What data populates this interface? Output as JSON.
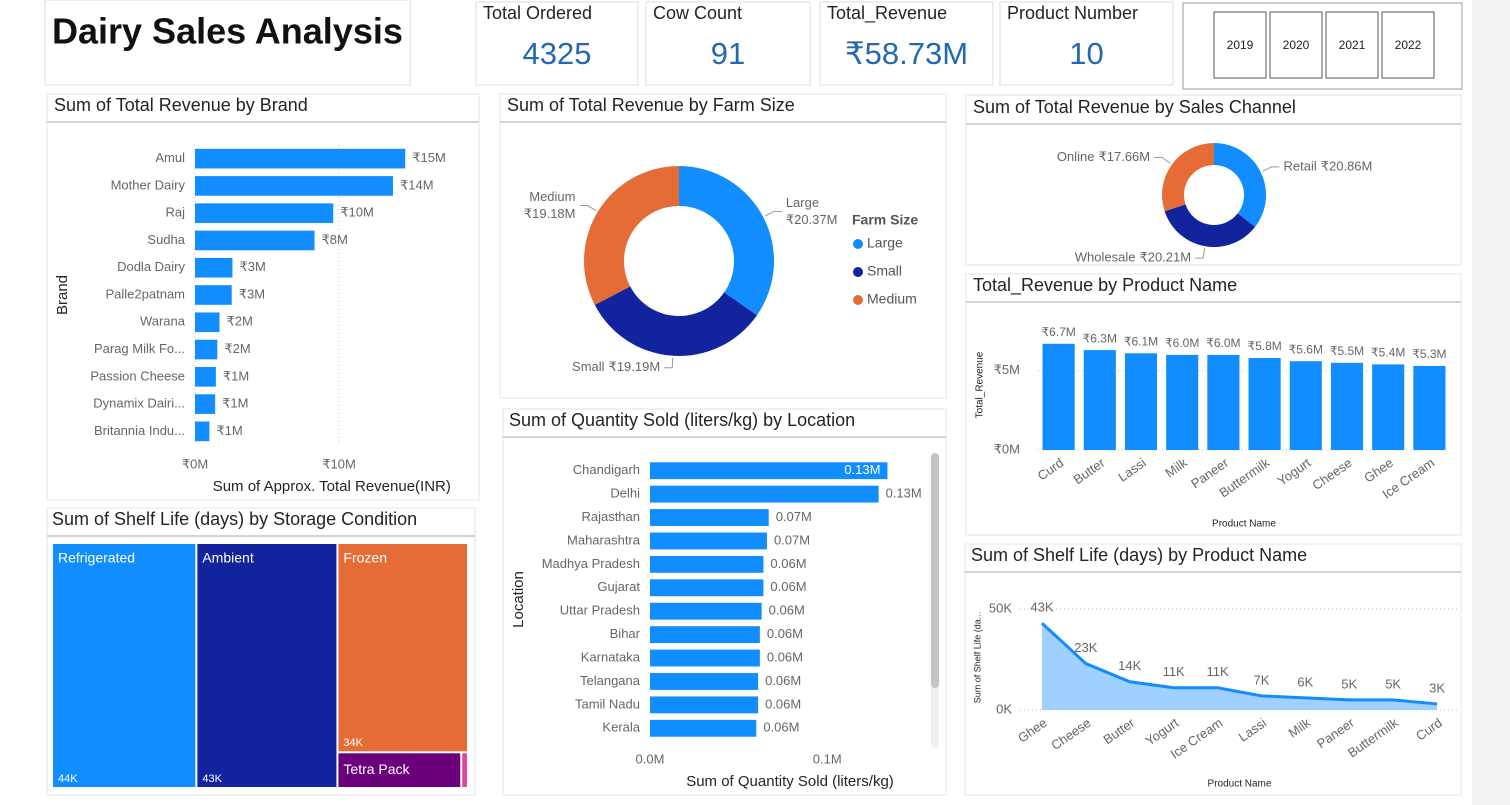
{
  "title": "Dairy Sales Analysis",
  "cards": [
    {
      "label": "Total Ordered",
      "value": 4325
    },
    {
      "label": "Cow Count",
      "value": 91
    },
    {
      "label": "Total_Revenue",
      "value": "₹58.73M"
    },
    {
      "label": "Product Number",
      "value": 10
    }
  ],
  "slicer": {
    "options": [
      "2019",
      "2020",
      "2021",
      "2022"
    ]
  },
  "chart_data": [
    {
      "type": "bar",
      "orientation": "horizontal",
      "title": "Sum of Total Revenue by Brand",
      "x_label": "Sum of Approx. Total Revenue(INR)",
      "y_label": "Brand",
      "categories": [
        "Amul",
        "Mother Dairy",
        "Raj",
        "Sudha",
        "Dodla Dairy",
        "Palle2patnam",
        "Warana",
        "Parag Milk Fo...",
        "Passion Cheese",
        "Dynamix Dairi...",
        "Britannia Indu..."
      ],
      "values": [
        14.6,
        13.75,
        9.6,
        8.3,
        2.6,
        2.55,
        1.7,
        1.55,
        1.45,
        1.4,
        1.0
      ],
      "value_labels": [
        "₹15M",
        "₹14M",
        "₹10M",
        "₹8M",
        "₹3M",
        "₹3M",
        "₹2M",
        "₹2M",
        "₹1M",
        "₹1M",
        "₹1M"
      ],
      "color": "#118DFF",
      "xlim": [
        0,
        19
      ],
      "xticks": [
        {
          "value": 0,
          "label": "₹0M"
        },
        {
          "value": 10,
          "label": "₹10M"
        }
      ],
      "grid": true
    },
    {
      "type": "donut",
      "title": "Sum of Total Revenue by Farm Size",
      "categories": [
        "Large",
        "Small",
        "Medium"
      ],
      "values": [
        20.37,
        19.19,
        19.18
      ],
      "value_labels": [
        "₹20.37M",
        "₹19.19M",
        "₹19.18M"
      ],
      "colors": [
        "#118DFF",
        "#12239E",
        "#E66C37"
      ],
      "legend": "right",
      "legend_title": "Farm Size"
    },
    {
      "type": "donut",
      "title": "Sum of Total Revenue by Sales Channel",
      "categories": [
        "Retail",
        "Wholesale",
        "Online"
      ],
      "values": [
        20.86,
        20.21,
        17.66
      ],
      "value_labels": [
        "₹20.86M",
        "₹20.21M",
        "₹17.66M"
      ],
      "colors": [
        "#118DFF",
        "#12239E",
        "#E66C37"
      ]
    },
    {
      "type": "bar",
      "orientation": "horizontal",
      "title": "Sum of Quantity Sold (liters/kg) by Location",
      "x_label": "Sum of Quantity Sold (liters/kg)",
      "y_label": "Location",
      "categories": [
        "Chandigarh",
        "Delhi",
        "Rajasthan",
        "Maharashtra",
        "Madhya Pradesh",
        "Gujarat",
        "Uttar Pradesh",
        "Bihar",
        "Karnataka",
        "Telangana",
        "Tamil Nadu",
        "Kerala"
      ],
      "values": [
        0.134,
        0.129,
        0.067,
        0.066,
        0.064,
        0.064,
        0.063,
        0.062,
        0.062,
        0.061,
        0.061,
        0.06
      ],
      "value_labels": [
        "0.13M",
        "0.13M",
        "0.07M",
        "0.07M",
        "0.06M",
        "0.06M",
        "0.06M",
        "0.06M",
        "0.06M",
        "0.06M",
        "0.06M",
        "0.06M"
      ],
      "color": "#118DFF",
      "xlim": [
        0,
        0.158
      ],
      "xticks": [
        {
          "value": 0,
          "label": "0.0M"
        },
        {
          "value": 0.1,
          "label": "0.1M"
        }
      ],
      "grid": false
    },
    {
      "type": "bar",
      "orientation": "vertical",
      "title": "Total_Revenue by Product Name",
      "x_label": "Product Name",
      "y_label": "Total_Revenue",
      "categories": [
        "Curd",
        "Butter",
        "Lassi",
        "Milk",
        "Paneer",
        "Buttermilk",
        "Yogurt",
        "Cheese",
        "Ghee",
        "Ice Cream"
      ],
      "values": [
        6.7,
        6.3,
        6.1,
        6.0,
        6.0,
        5.8,
        5.6,
        5.5,
        5.4,
        5.3
      ],
      "value_labels": [
        "₹6.7M",
        "₹6.3M",
        "₹6.1M",
        "₹6.0M",
        "₹6.0M",
        "₹5.8M",
        "₹5.6M",
        "₹5.5M",
        "₹5.4M",
        "₹5.3M"
      ],
      "color": "#118DFF",
      "ylim": [
        0,
        8.2
      ],
      "yticks": [
        {
          "value": 0,
          "label": "₹0M"
        },
        {
          "value": 5,
          "label": "₹5M"
        }
      ],
      "grid": true
    },
    {
      "type": "treemap",
      "title": "Sum of Shelf Life (days) by Storage Condition",
      "categories": [
        "Refrigerated",
        "Ambient",
        "Frozen",
        "Tetra Pack",
        null
      ],
      "values": [
        44,
        43,
        34,
        5.5,
        0.3
      ],
      "value_labels": [
        "44K",
        "43K",
        "34K",
        null,
        null
      ],
      "colors": [
        "#118DFF",
        "#12239E",
        "#E66C37",
        "#6B007B",
        "#E044A7"
      ]
    },
    {
      "type": "area",
      "title": "Sum of Shelf Life (days) by Product Name",
      "x_label": "Product Name",
      "y_label": "Sum of Shelf Life (da...",
      "categories": [
        "Ghee",
        "Cheese",
        "Butter",
        "Yogurt",
        "Ice Cream",
        "Lassi",
        "Milk",
        "Paneer",
        "Buttermilk",
        "Curd"
      ],
      "values": [
        43,
        23,
        14,
        11,
        11,
        7,
        6,
        5,
        5,
        3
      ],
      "value_labels": [
        "43K",
        "23K",
        "14K",
        "11K",
        "11K",
        "7K",
        "6K",
        "5K",
        "5K",
        "3K"
      ],
      "color": "#118DFF",
      "ylim": [
        0,
        52
      ],
      "yticks": [
        {
          "value": 0,
          "label": "0K"
        },
        {
          "value": 50,
          "label": "50K"
        }
      ],
      "grid": true
    }
  ]
}
